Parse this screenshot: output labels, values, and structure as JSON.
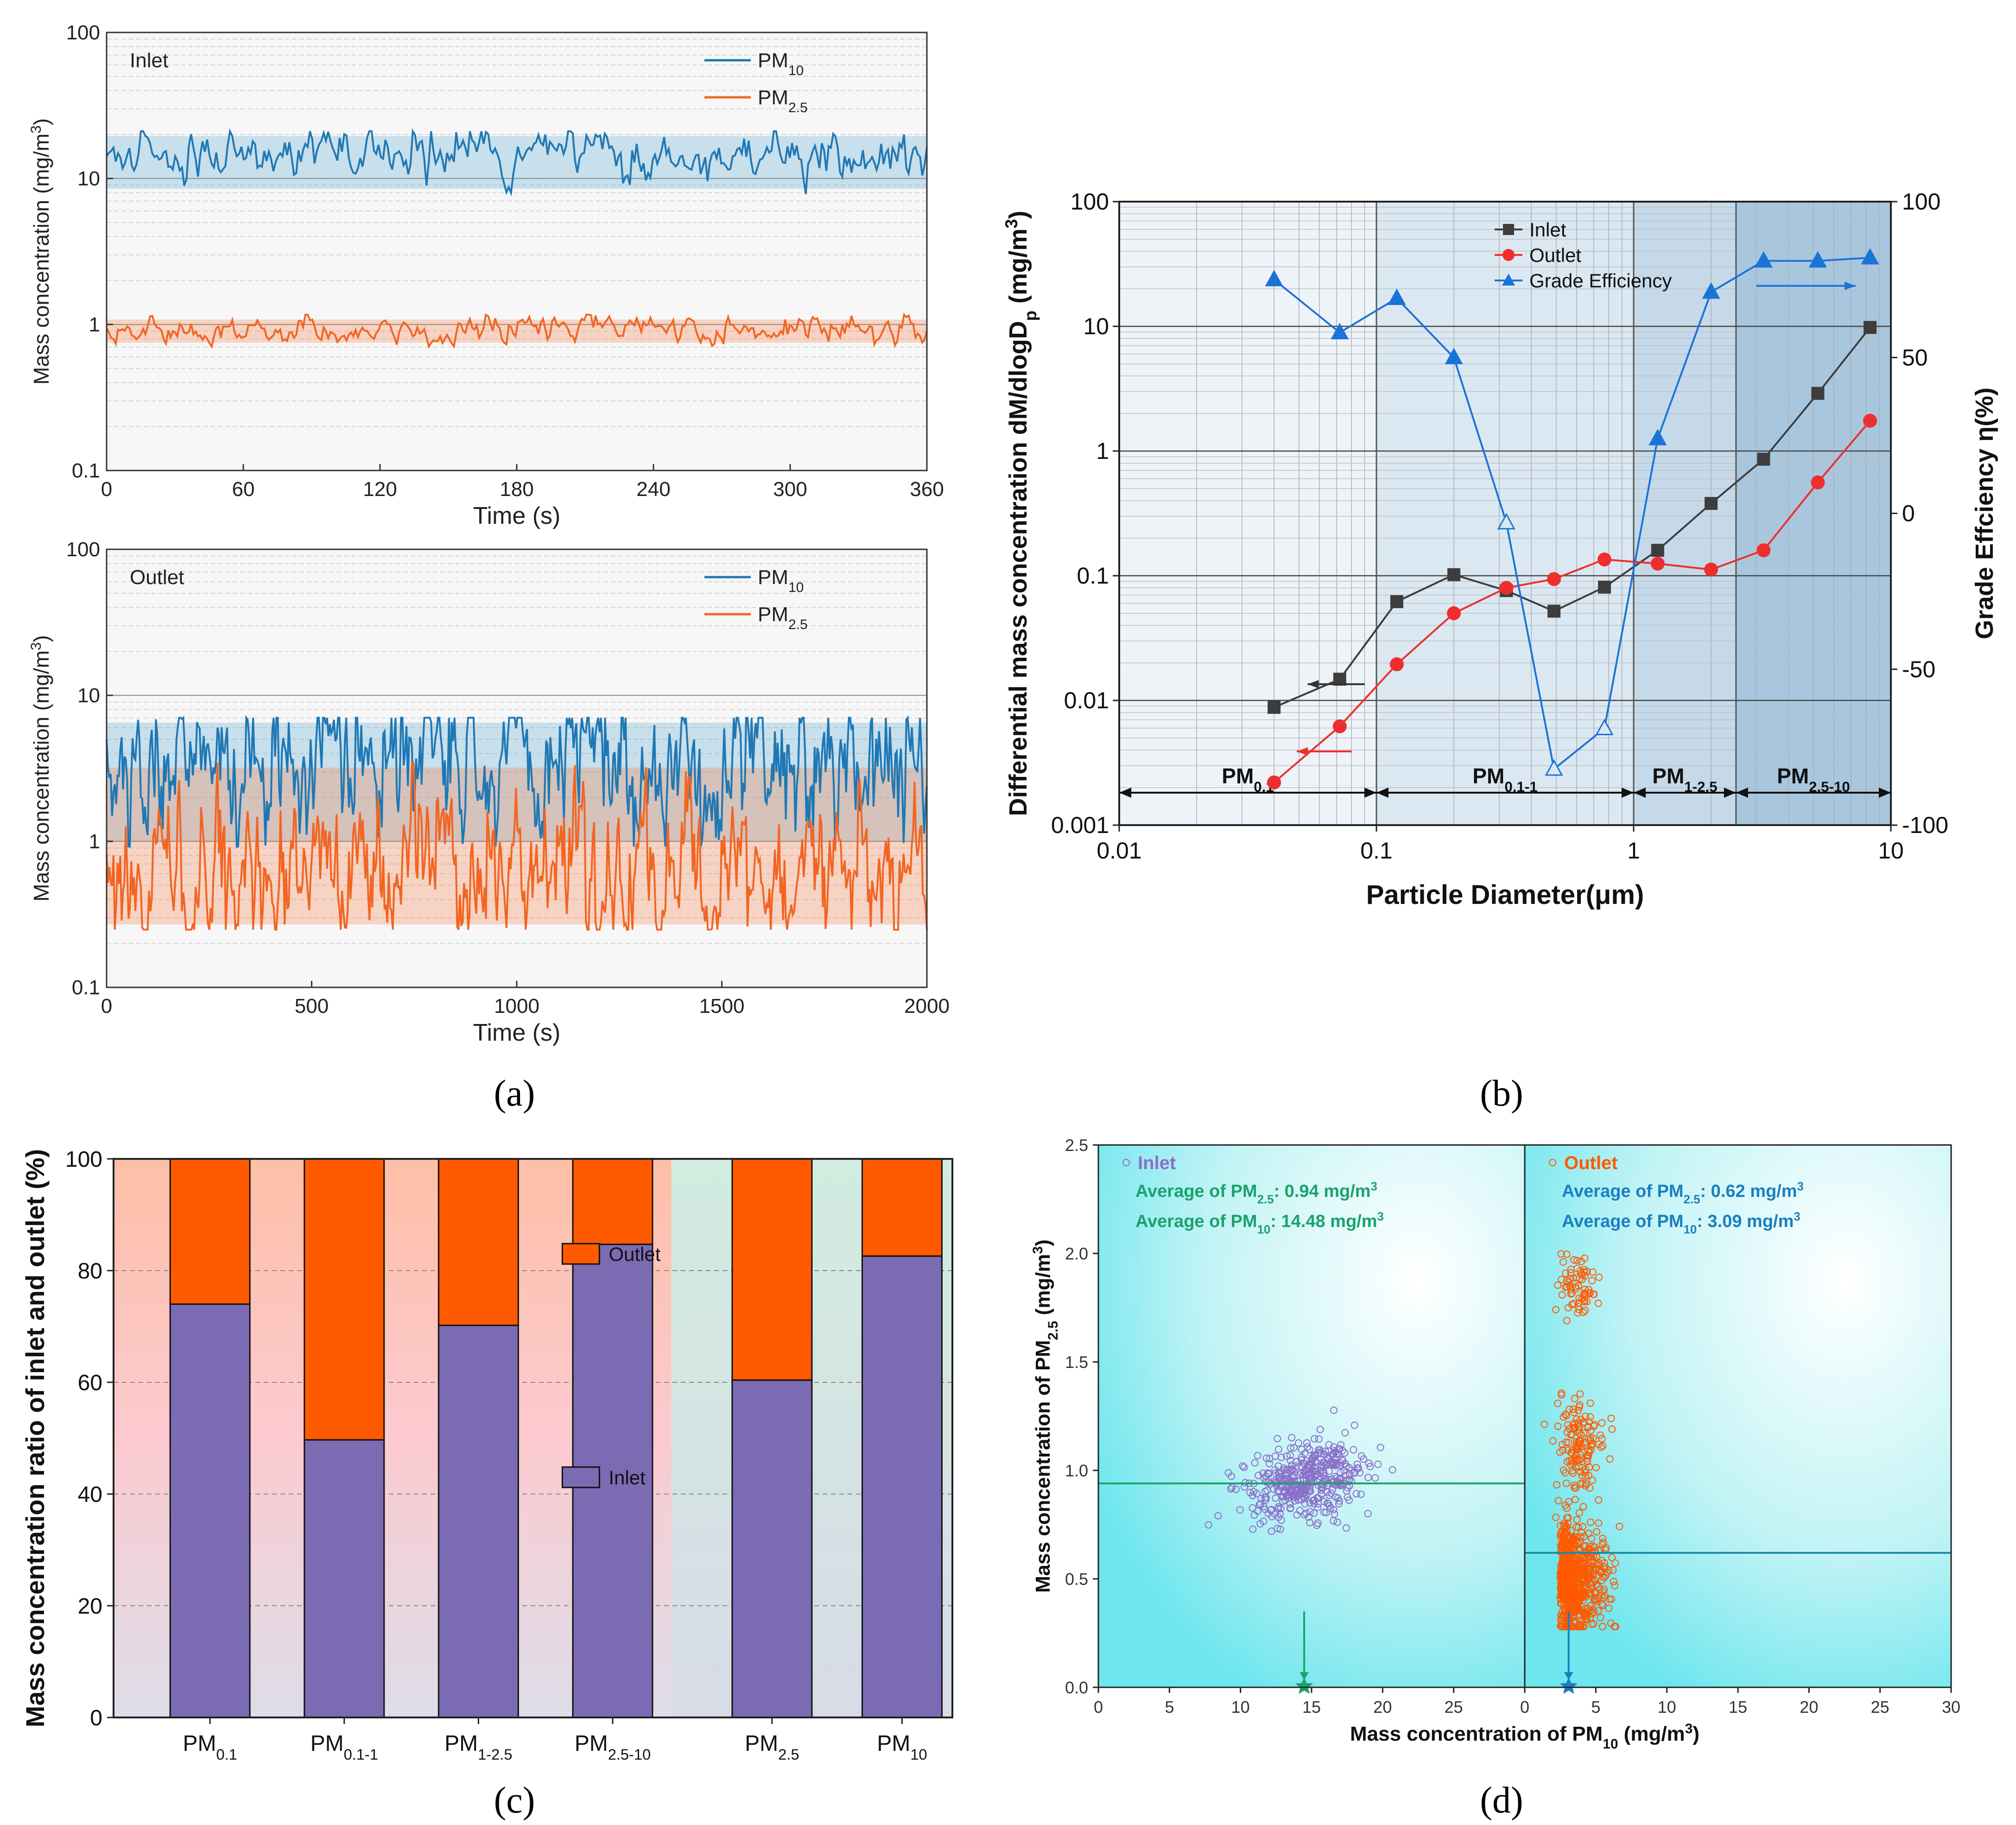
{
  "figure": {
    "captions": [
      "(a)",
      "(b)",
      "(c)",
      "(d)"
    ]
  },
  "chart_data": [
    {
      "id": "a-top",
      "type": "line",
      "panel_label": "Inlet",
      "xlabel": "Time (s)",
      "ylabel": "Mass concentration (mg/m3)",
      "xlim": [
        0,
        360
      ],
      "ylim": [
        0.1,
        100
      ],
      "yscale": "log",
      "xticks": [
        0,
        60,
        120,
        180,
        240,
        300,
        360
      ],
      "yticks": [
        0.1,
        1,
        10,
        100
      ],
      "ytick_labels": [
        "0.1",
        "1",
        "10",
        "100"
      ],
      "legend": [
        "PM10",
        "PM2.5"
      ],
      "series": [
        {
          "name": "PM10",
          "color": "#1f78b4",
          "mean": 14.5,
          "band": [
            8.5,
            19.5
          ],
          "noise": 0.07,
          "n": 360,
          "seed": 11
        },
        {
          "name": "PM2.5",
          "color": "#f26522",
          "mean": 0.93,
          "band": [
            0.75,
            1.08
          ],
          "noise": 0.04,
          "n": 360,
          "seed": 23
        }
      ]
    },
    {
      "id": "a-bottom",
      "type": "line",
      "panel_label": "Outlet",
      "xlabel": "Time (s)",
      "ylabel": "Mass concentration (mg/m3)",
      "xlim": [
        0,
        2000
      ],
      "ylim": [
        0.1,
        100
      ],
      "yscale": "log",
      "xticks": [
        0,
        500,
        1000,
        1500,
        2000
      ],
      "yticks": [
        0.1,
        1,
        10,
        100
      ],
      "ytick_labels": [
        "0.1",
        "1",
        "10",
        "100"
      ],
      "legend": [
        "PM10",
        "PM2.5"
      ],
      "series": [
        {
          "name": "PM10",
          "color": "#1f78b4",
          "mean": 3.1,
          "band": [
            1.0,
            6.5
          ],
          "noise": 0.22,
          "n": 600,
          "seed": 37
        },
        {
          "name": "PM2.5",
          "color": "#f26522",
          "mean": 0.5,
          "band": [
            0.27,
            3.2
          ],
          "noise": 0.2,
          "n": 600,
          "seed": 51
        }
      ]
    },
    {
      "id": "b",
      "type": "line",
      "xlabel": "Particle Diameter(μm)",
      "ylabel_left": "Differential mass concentration dM/dlogDp (mg/m3)",
      "ylabel_right": "Grade Effciency η(%)",
      "xscale": "log",
      "xlim": [
        0.01,
        10
      ],
      "ylim_left": [
        0.001,
        100
      ],
      "ylim_right": [
        -100,
        100
      ],
      "xticks": [
        0.01,
        0.1,
        1,
        10
      ],
      "xtick_labels": [
        "0.01",
        "0.1",
        "1",
        "10"
      ],
      "yticks_left": [
        0.001,
        0.01,
        0.1,
        1,
        10,
        100
      ],
      "ytick_labels_left": [
        "0.001",
        "0.01",
        "0.1",
        "1",
        "10",
        "100"
      ],
      "yticks_right": [
        -100,
        -50,
        0,
        50,
        100
      ],
      "legend": [
        "Inlet",
        "Outlet",
        "Grade Efficiency"
      ],
      "ranges": [
        {
          "label": "PM0.1",
          "from": 0.01,
          "to": 0.1
        },
        {
          "label": "PM0.1-1",
          "from": 0.1,
          "to": 1
        },
        {
          "label": "PM1-2.5",
          "from": 1,
          "to": 2.5
        },
        {
          "label": "PM2.5-10",
          "from": 2.5,
          "to": 10
        }
      ],
      "x": [
        0.04,
        0.072,
        0.12,
        0.2,
        0.32,
        0.49,
        0.77,
        1.24,
        2.0,
        3.2,
        5.2,
        8.3
      ],
      "series": [
        {
          "name": "Inlet",
          "color": "#3d3d3d",
          "marker": "square",
          "axis": "left",
          "values": [
            0.0088,
            0.0148,
            0.062,
            0.102,
            0.076,
            0.052,
            0.081,
            0.16,
            0.38,
            0.86,
            2.9,
            9.8
          ]
        },
        {
          "name": "Outlet",
          "color": "#ee2e2e",
          "marker": "circle",
          "axis": "left",
          "values": [
            0.0022,
            0.0062,
            0.0195,
            0.05,
            0.08,
            0.094,
            0.135,
            0.125,
            0.112,
            0.16,
            0.56,
            1.75
          ]
        },
        {
          "name": "Grade Efficiency",
          "color": "#1a73d9",
          "marker": "triangle",
          "axis": "right",
          "values": [
            75,
            58,
            69,
            50,
            -3,
            -82,
            -69,
            24,
            71,
            81,
            81,
            82
          ],
          "hollow": [
            false,
            false,
            false,
            false,
            true,
            true,
            true,
            false,
            false,
            false,
            false,
            false
          ]
        }
      ]
    },
    {
      "id": "c",
      "type": "bar",
      "stacked": true,
      "ylabel": "Mass concentration ratio of inlet and outlet (%)",
      "ylim": [
        0,
        100
      ],
      "yticks": [
        0,
        20,
        40,
        60,
        80,
        100
      ],
      "categories": [
        "PM0.1",
        "PM0.1-1",
        "PM1-2.5",
        "PM2.5-10",
        "PM2.5",
        "PM10"
      ],
      "series": [
        {
          "name": "Inlet",
          "color": "#7b6bb3",
          "values": [
            74,
            49.7,
            70.2,
            84.7,
            60.4,
            82.6
          ]
        },
        {
          "name": "Outlet",
          "color": "#ff5a00",
          "values": [
            26,
            50.3,
            29.8,
            15.3,
            39.6,
            17.4
          ]
        }
      ],
      "legend": [
        "Outlet",
        "Inlet"
      ]
    },
    {
      "id": "d",
      "type": "scatter",
      "xlabel": "Mass concentration of PM10 (mg/m3)",
      "ylabel": "Mass concentration of PM2.5 (mg/m3)",
      "ylim": [
        0,
        2.5
      ],
      "yticks": [
        0.0,
        0.5,
        1.0,
        1.5,
        2.0,
        2.5
      ],
      "ytick_labels": [
        "0.0",
        "0.5",
        "1.0",
        "1.5",
        "2.0",
        "2.5"
      ],
      "panels": [
        {
          "name": "Inlet",
          "xlim": [
            0,
            30
          ],
          "xticks": [
            0,
            5,
            10,
            15,
            20,
            25
          ],
          "color": "#8a6fc9",
          "avg_pm25": "Average of PM2.5: 0.94 mg/m3",
          "avg_pm10": "Average of PM10: 14.48 mg/m3",
          "mean_x": 14.48,
          "mean_y": 0.94,
          "text_color": "#1aa36b",
          "n": 420,
          "seed": 7,
          "cluster": {
            "cx": 14.5,
            "cy": 0.95,
            "sx": 2.0,
            "sy": 0.08
          }
        },
        {
          "name": "Outlet",
          "xlim": [
            0,
            30
          ],
          "xticks": [
            0,
            5,
            10,
            15,
            20,
            25,
            30
          ],
          "color": "#ff5a00",
          "avg_pm25": "Average of PM2.5: 0.62 mg/m3",
          "avg_pm10": "Average of PM10: 3.09 mg/m3",
          "mean_x": 3.09,
          "mean_y": 0.62,
          "text_color": "#1a7fc0",
          "n": 900,
          "seed": 19,
          "cluster": {
            "cx": 3.0,
            "cy": 0.5,
            "sx": 1.2,
            "sy": 0.12
          }
        }
      ]
    }
  ]
}
